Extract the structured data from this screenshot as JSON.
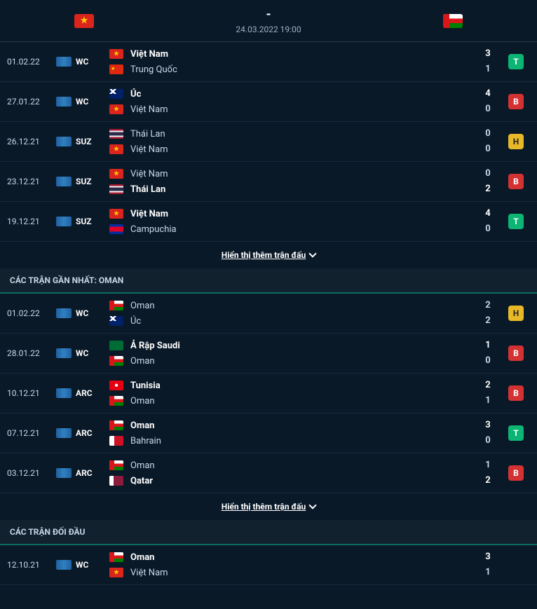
{
  "header": {
    "score": "-",
    "datetime": "24.03.2022 19:00",
    "home_flag": "fl-vietnam",
    "away_flag": "fl-oman"
  },
  "sections": [
    {
      "matches": [
        {
          "date": "01.02.22",
          "comp": "WC",
          "home": "Việt Nam",
          "home_flag": "fl-vietnam",
          "home_score": "3",
          "home_bold": true,
          "away": "Trung Quốc",
          "away_flag": "fl-china",
          "away_score": "1",
          "away_bold": false,
          "result": "T"
        },
        {
          "date": "27.01.22",
          "comp": "WC",
          "home": "Úc",
          "home_flag": "fl-australia",
          "home_score": "4",
          "home_bold": true,
          "away": "Việt Nam",
          "away_flag": "fl-vietnam",
          "away_score": "0",
          "away_bold": false,
          "result": "B"
        },
        {
          "date": "26.12.21",
          "comp": "SUZ",
          "home": "Thái Lan",
          "home_flag": "fl-thailand",
          "home_score": "0",
          "home_bold": false,
          "away": "Việt Nam",
          "away_flag": "fl-vietnam",
          "away_score": "0",
          "away_bold": false,
          "result": "H"
        },
        {
          "date": "23.12.21",
          "comp": "SUZ",
          "home": "Việt Nam",
          "home_flag": "fl-vietnam",
          "home_score": "0",
          "home_bold": false,
          "away": "Thái Lan",
          "away_flag": "fl-thailand",
          "away_score": "2",
          "away_bold": true,
          "result": "B"
        },
        {
          "date": "19.12.21",
          "comp": "SUZ",
          "home": "Việt Nam",
          "home_flag": "fl-vietnam",
          "home_score": "4",
          "home_bold": true,
          "away": "Campuchia",
          "away_flag": "fl-cambodia",
          "away_score": "0",
          "away_bold": false,
          "result": "T"
        }
      ],
      "show_more": "Hiển thị thêm trận đấu"
    },
    {
      "title": "CÁC TRẬN GẦN NHẤT: OMAN",
      "matches": [
        {
          "date": "01.02.22",
          "comp": "WC",
          "home": "Oman",
          "home_flag": "fl-oman",
          "home_score": "2",
          "home_bold": false,
          "away": "Úc",
          "away_flag": "fl-australia",
          "away_score": "2",
          "away_bold": false,
          "result": "H"
        },
        {
          "date": "28.01.22",
          "comp": "WC",
          "home": "Ả Rập Saudi",
          "home_flag": "fl-saudi",
          "home_score": "1",
          "home_bold": true,
          "away": "Oman",
          "away_flag": "fl-oman",
          "away_score": "0",
          "away_bold": false,
          "result": "B"
        },
        {
          "date": "10.12.21",
          "comp": "ARC",
          "home": "Tunisia",
          "home_flag": "fl-tunisia",
          "home_score": "2",
          "home_bold": true,
          "away": "Oman",
          "away_flag": "fl-oman",
          "away_score": "1",
          "away_bold": false,
          "result": "B"
        },
        {
          "date": "07.12.21",
          "comp": "ARC",
          "home": "Oman",
          "home_flag": "fl-oman",
          "home_score": "3",
          "home_bold": true,
          "away": "Bahrain",
          "away_flag": "fl-bahrain",
          "away_score": "0",
          "away_bold": false,
          "result": "T"
        },
        {
          "date": "03.12.21",
          "comp": "ARC",
          "home": "Oman",
          "home_flag": "fl-oman",
          "home_score": "1",
          "home_bold": false,
          "away": "Qatar",
          "away_flag": "fl-qatar",
          "away_score": "2",
          "away_bold": true,
          "result": "B"
        }
      ],
      "show_more": "Hiển thị thêm trận đấu"
    },
    {
      "title": "CÁC TRẬN ĐỐI ĐẦU",
      "matches": [
        {
          "date": "12.10.21",
          "comp": "WC",
          "home": "Oman",
          "home_flag": "fl-oman",
          "home_score": "3",
          "home_bold": true,
          "away": "Việt Nam",
          "away_flag": "fl-vietnam",
          "away_score": "1",
          "away_bold": false,
          "result": ""
        }
      ]
    }
  ]
}
